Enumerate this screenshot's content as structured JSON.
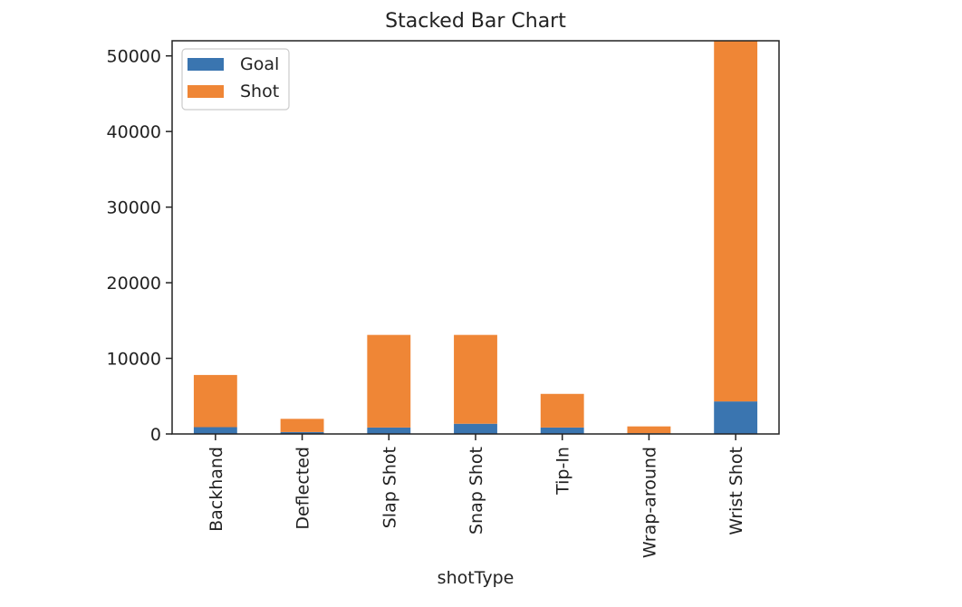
{
  "chart_data": {
    "type": "bar",
    "stacked": true,
    "title": "Stacked Bar Chart",
    "xlabel": "shotType",
    "ylabel": "",
    "categories": [
      "Backhand",
      "Deflected",
      "Slap Shot",
      "Snap Shot",
      "Tip-In",
      "Wrap-around",
      "Wrist Shot"
    ],
    "series": [
      {
        "name": "Goal",
        "color": "#3a75b0",
        "values": [
          900,
          250,
          850,
          1350,
          850,
          100,
          4300
        ]
      },
      {
        "name": "Shot",
        "color": "#ef8636",
        "values": [
          6900,
          1750,
          12250,
          11750,
          4450,
          900,
          47700
        ]
      }
    ],
    "ylim": [
      0,
      52000
    ],
    "yticks": [
      0,
      10000,
      20000,
      30000,
      40000,
      50000
    ],
    "legend": "top-left",
    "grid": false
  }
}
